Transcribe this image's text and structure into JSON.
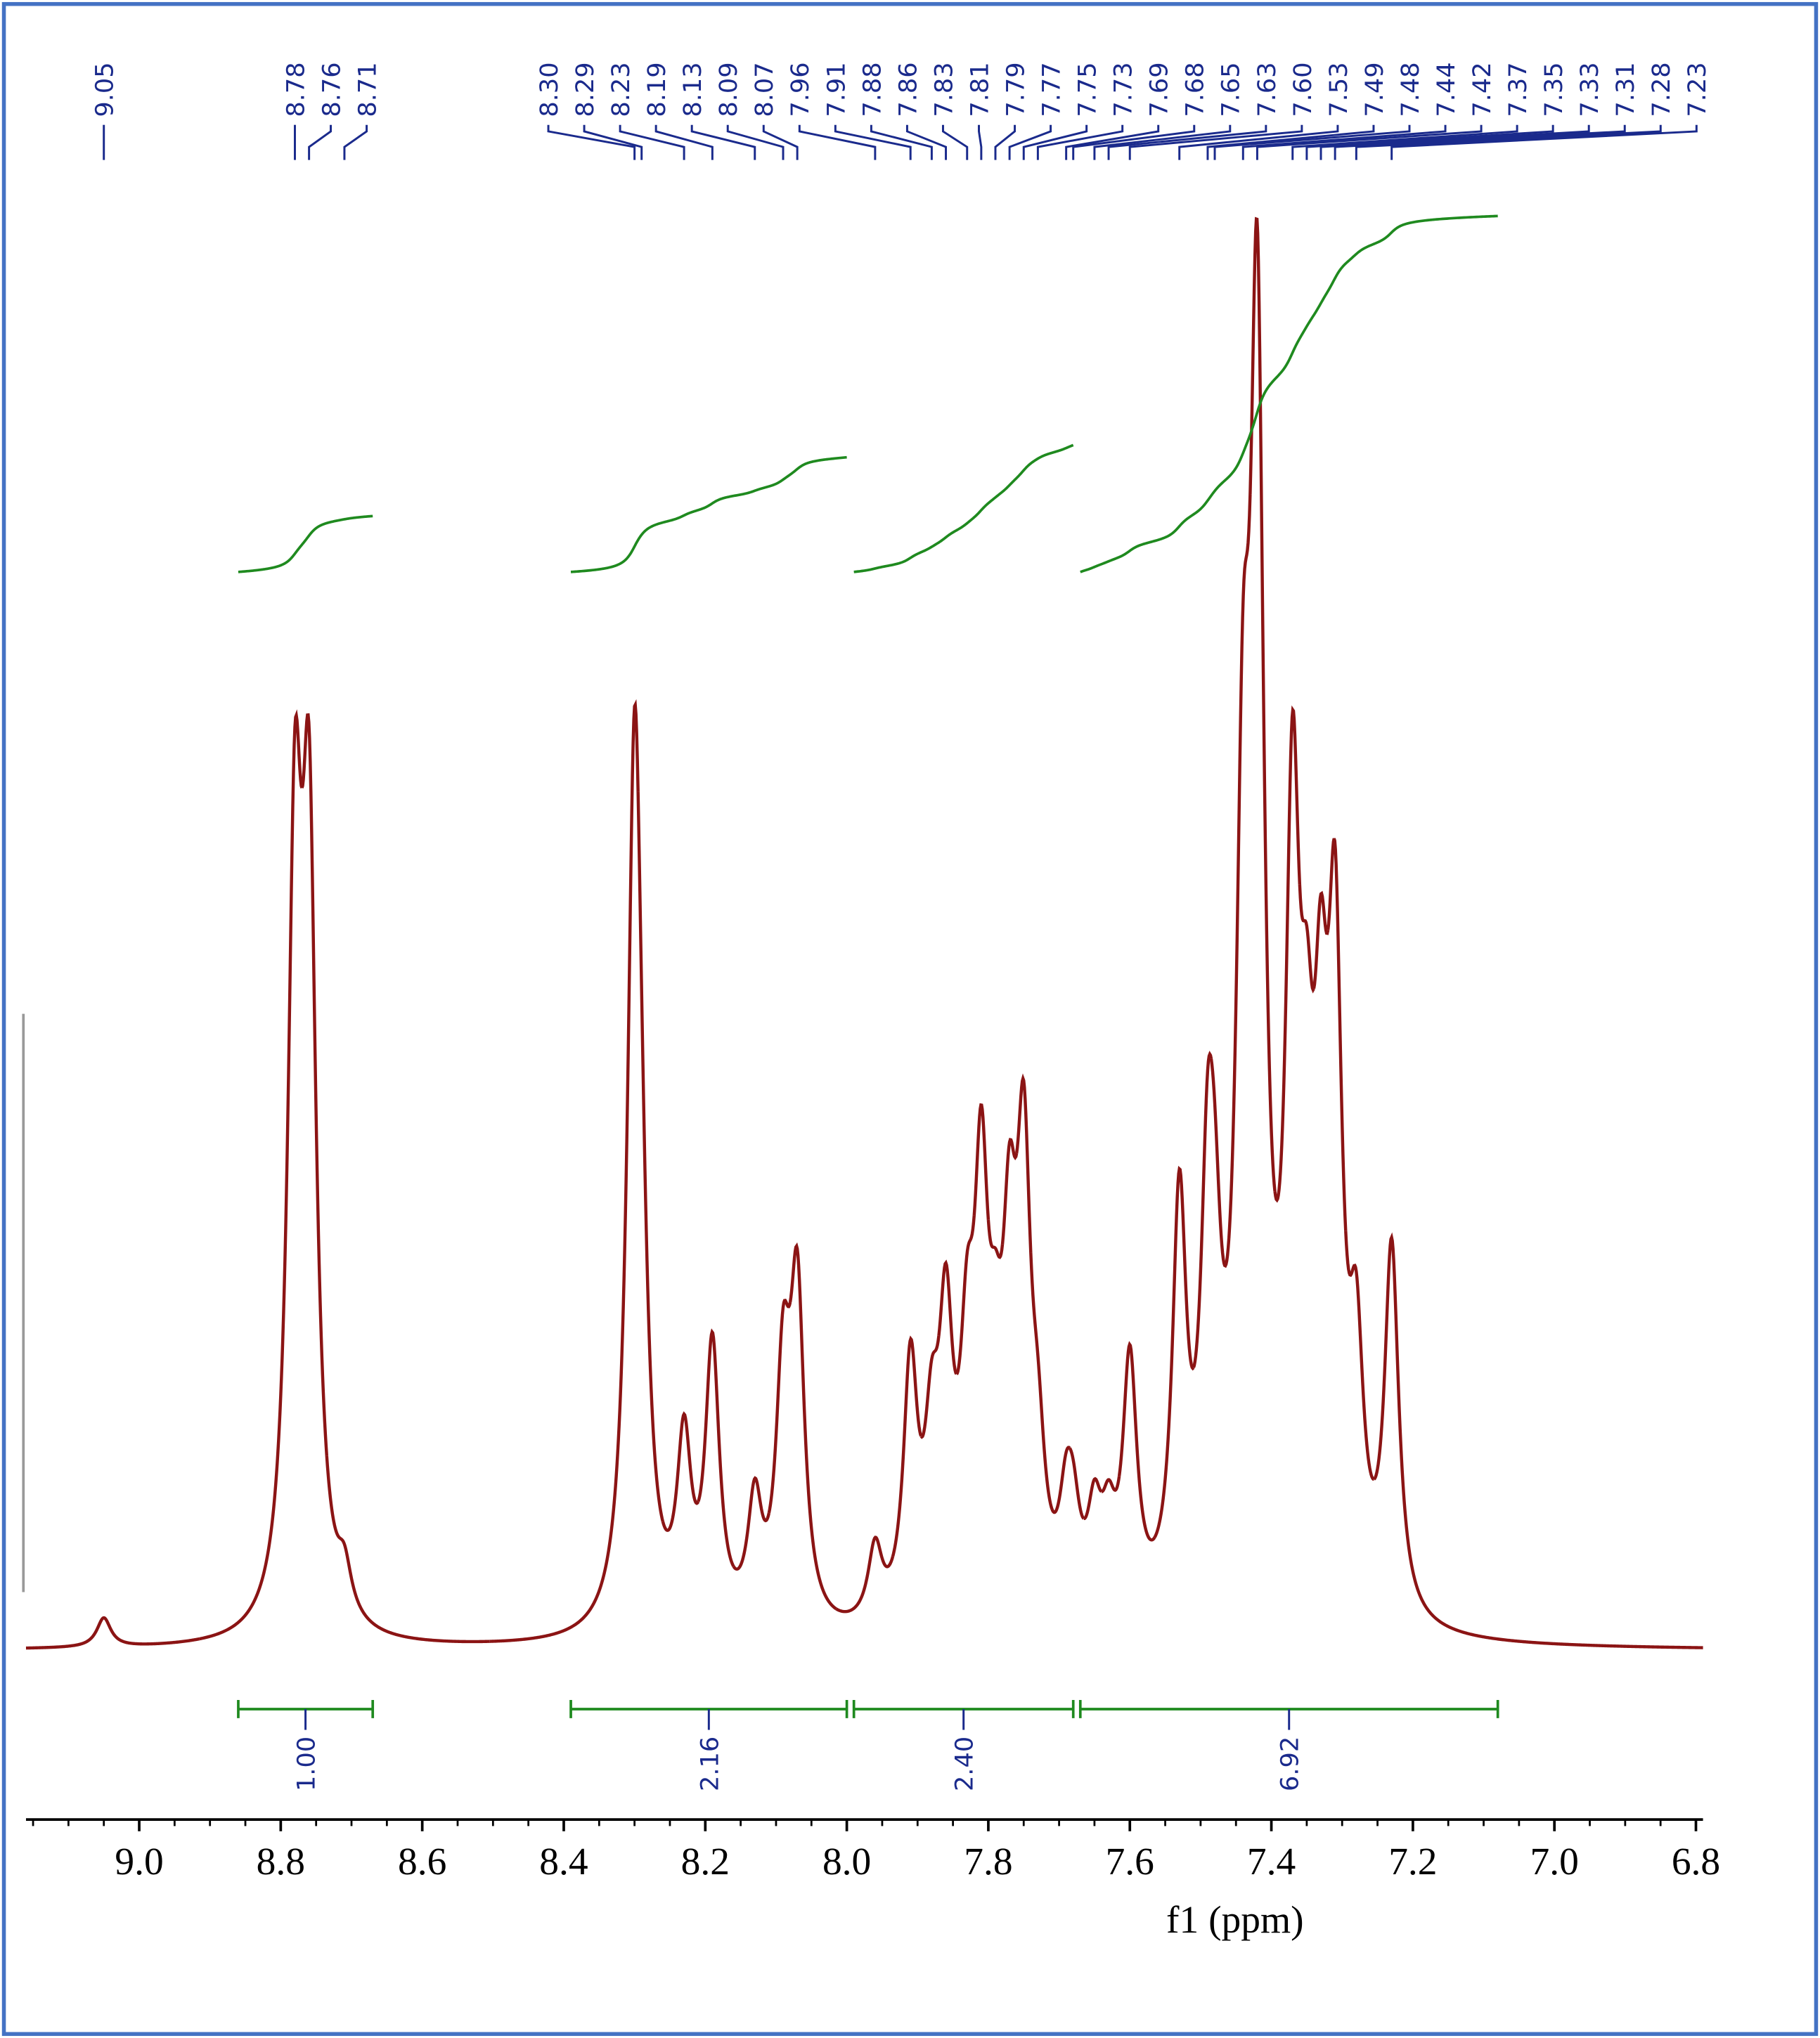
{
  "chart_data": {
    "type": "spectrum",
    "x_label": "f1 (ppm)",
    "xlim": [
      9.16,
      6.79
    ],
    "xticks": [
      {
        "value": 9.0,
        "label": "9.0"
      },
      {
        "value": 8.8,
        "label": "8.8"
      },
      {
        "value": 8.6,
        "label": "8.6"
      },
      {
        "value": 8.4,
        "label": "8.4"
      },
      {
        "value": 8.2,
        "label": "8.2"
      },
      {
        "value": 8.0,
        "label": "8.0"
      },
      {
        "value": 7.8,
        "label": "7.8"
      },
      {
        "value": 7.6,
        "label": "7.6"
      },
      {
        "value": 7.4,
        "label": "7.4"
      },
      {
        "value": 7.2,
        "label": "7.2"
      },
      {
        "value": 7.0,
        "label": "7.0"
      },
      {
        "value": 6.8,
        "label": "6.8"
      }
    ],
    "xminorticks": [
      9.15,
      9.1,
      9.05,
      8.95,
      8.9,
      8.85,
      8.75,
      8.7,
      8.65,
      8.55,
      8.5,
      8.45,
      8.35,
      8.3,
      8.25,
      8.15,
      8.1,
      8.05,
      7.95,
      7.9,
      7.85,
      7.75,
      7.7,
      7.65,
      7.55,
      7.5,
      7.45,
      7.35,
      7.3,
      7.25,
      7.15,
      7.1,
      7.05,
      6.95,
      6.9,
      6.85
    ],
    "color": "#8b1414",
    "label_color": "#1a2a8c",
    "integral_color": "#1f8a1f",
    "x": [
      9.05,
      8.78,
      8.76,
      8.71,
      8.3,
      8.29,
      8.23,
      8.19,
      8.13,
      8.09,
      8.07,
      7.96,
      7.91,
      7.88,
      7.86,
      7.83,
      7.81,
      7.79,
      7.77,
      7.75,
      7.73,
      7.69,
      7.68,
      7.65,
      7.63,
      7.6,
      7.53,
      7.49,
      7.48,
      7.44,
      7.42,
      7.37,
      7.35,
      7.33,
      7.31,
      7.28,
      7.23
    ],
    "x_labels": [
      "9.05",
      "8.78",
      "8.76",
      "8.71",
      "8.30",
      "8.29",
      "8.23",
      "8.19",
      "8.13",
      "8.09",
      "8.07",
      "7.96",
      "7.91",
      "7.88",
      "7.86",
      "7.83",
      "7.81",
      "7.79",
      "7.77",
      "7.75",
      "7.73",
      "7.69",
      "7.68",
      "7.65",
      "7.63",
      "7.60",
      "7.53",
      "7.49",
      "7.48",
      "7.44",
      "7.42",
      "7.37",
      "7.35",
      "7.33",
      "7.31",
      "7.28",
      "7.23"
    ],
    "values": [
      2,
      50,
      50,
      3,
      58,
      10,
      12,
      19,
      8,
      16,
      22,
      5,
      17,
      10,
      18,
      14,
      26,
      10,
      20,
      28,
      8,
      6,
      5,
      6,
      5,
      17,
      27,
      23,
      14,
      45,
      80,
      48,
      22,
      28,
      40,
      15,
      25
    ],
    "integrals": [
      {
        "range": [
          8.86,
          8.67
        ],
        "value": 1.0,
        "label": "1.00"
      },
      {
        "range": [
          8.39,
          8.0
        ],
        "value": 2.16,
        "label": "2.16"
      },
      {
        "range": [
          7.99,
          7.68
        ],
        "value": 2.4,
        "label": "2.40"
      },
      {
        "range": [
          7.67,
          7.08
        ],
        "value": 6.92,
        "label": "6.92"
      }
    ]
  }
}
